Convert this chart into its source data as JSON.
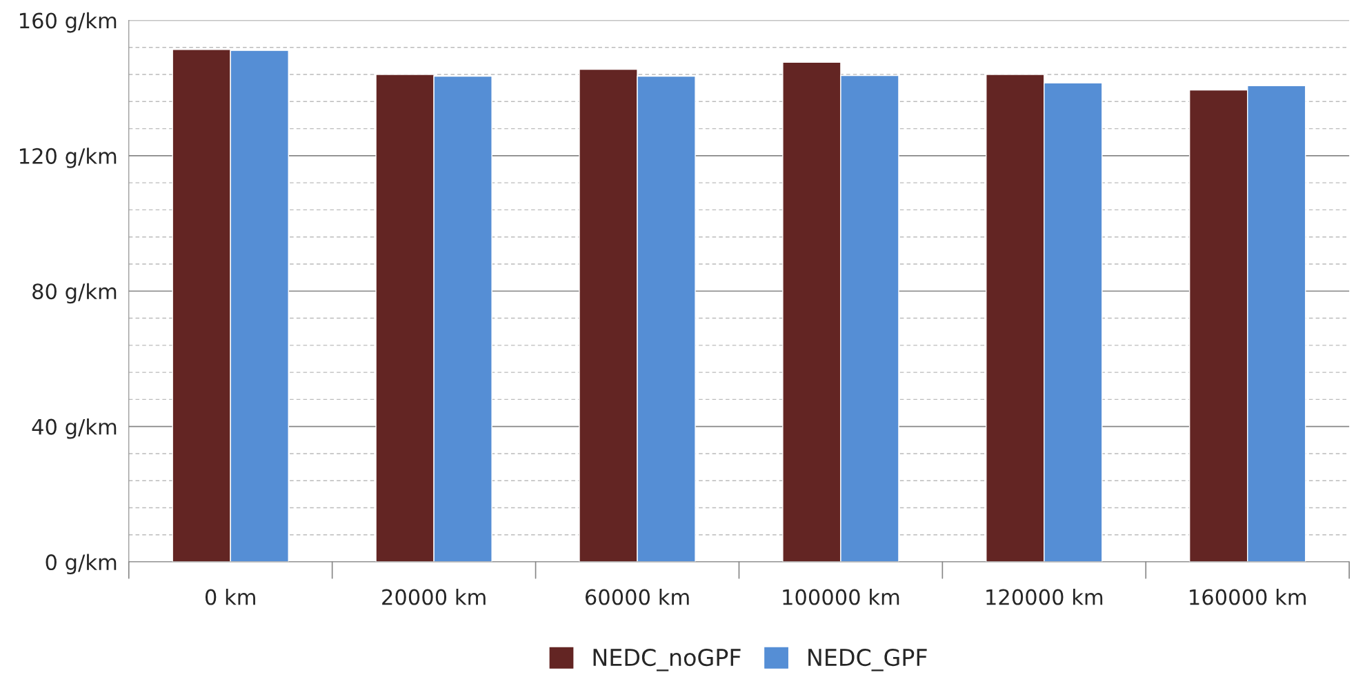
{
  "chart_data": {
    "type": "bar",
    "categories": [
      "0 km",
      "20000 km",
      "60000 km",
      "100000 km",
      "120000 km",
      "160000 km"
    ],
    "series": [
      {
        "name": "NEDC_noGPF",
        "color": "#632523",
        "values": [
          151.4,
          144,
          145.5,
          147.6,
          144,
          139.4
        ]
      },
      {
        "name": "NEDC_GPF",
        "color": "#558ed5",
        "values": [
          151.1,
          143.5,
          143.5,
          143.7,
          141.5,
          140.7
        ]
      }
    ],
    "ylim": [
      0,
      160
    ],
    "yticks": [
      {
        "value": 0,
        "label": "0 g/km"
      },
      {
        "value": 8,
        "label": null
      },
      {
        "value": 16,
        "label": null
      },
      {
        "value": 24,
        "label": null
      },
      {
        "value": 32,
        "label": null
      },
      {
        "value": 40,
        "label": "40 g/km"
      },
      {
        "value": 48,
        "label": null
      },
      {
        "value": 56,
        "label": null
      },
      {
        "value": 64,
        "label": null
      },
      {
        "value": 72,
        "label": null
      },
      {
        "value": 80,
        "label": "80 g/km"
      },
      {
        "value": 88,
        "label": null
      },
      {
        "value": 96,
        "label": null
      },
      {
        "value": 104,
        "label": null
      },
      {
        "value": 112,
        "label": null
      },
      {
        "value": 120,
        "label": "120 g/km"
      },
      {
        "value": 128,
        "label": null
      },
      {
        "value": 136,
        "label": null
      },
      {
        "value": 144,
        "label": null
      },
      {
        "value": 152,
        "label": null
      },
      {
        "value": 160,
        "label": "160 g/km"
      }
    ],
    "grid": "y",
    "legend": "bottom"
  }
}
